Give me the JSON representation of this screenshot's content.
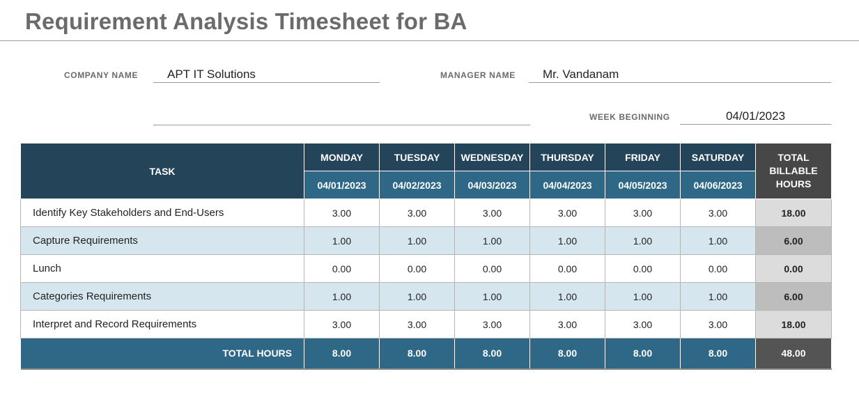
{
  "title": "Requirement Analysis Timesheet for BA",
  "company": {
    "label": "COMPANY NAME",
    "value": "APT IT Solutions"
  },
  "manager": {
    "label": "MANAGER NAME",
    "value": "Mr. Vandanam"
  },
  "week": {
    "label": "WEEK BEGINNING",
    "value": "04/01/2023"
  },
  "table": {
    "task_header": "TASK",
    "total_header": "TOTAL BILLABLE HOURS",
    "days": [
      {
        "name": "MONDAY",
        "date": "04/01/2023"
      },
      {
        "name": "TUESDAY",
        "date": "04/02/2023"
      },
      {
        "name": "WEDNESDAY",
        "date": "04/03/2023"
      },
      {
        "name": "THURSDAY",
        "date": "04/04/2023"
      },
      {
        "name": "FRIDAY",
        "date": "04/05/2023"
      },
      {
        "name": "SATURDAY",
        "date": "04/06/2023"
      }
    ],
    "rows": [
      {
        "task": "Identify Key Stakeholders and End-Users",
        "hours": [
          "3.00",
          "3.00",
          "3.00",
          "3.00",
          "3.00",
          "3.00"
        ],
        "total": "18.00"
      },
      {
        "task": "Capture Requirements",
        "hours": [
          "1.00",
          "1.00",
          "1.00",
          "1.00",
          "1.00",
          "1.00"
        ],
        "total": "6.00"
      },
      {
        "task": "Lunch",
        "hours": [
          "0.00",
          "0.00",
          "0.00",
          "0.00",
          "0.00",
          "0.00"
        ],
        "total": "0.00"
      },
      {
        "task": "Categories Requirements",
        "hours": [
          "1.00",
          "1.00",
          "1.00",
          "1.00",
          "1.00",
          "1.00"
        ],
        "total": "6.00"
      },
      {
        "task": "Interpret and Record Requirements",
        "hours": [
          "3.00",
          "3.00",
          "3.00",
          "3.00",
          "3.00",
          "3.00"
        ],
        "total": "18.00"
      }
    ],
    "footer": {
      "label": "TOTAL HOURS",
      "hours": [
        "8.00",
        "8.00",
        "8.00",
        "8.00",
        "8.00",
        "8.00"
      ],
      "total": "48.00"
    }
  },
  "colors": {
    "header_dark": "#234459",
    "header_blue": "#2f6886",
    "row_alt": "#d6e6ef",
    "total_dark": "#474747"
  }
}
